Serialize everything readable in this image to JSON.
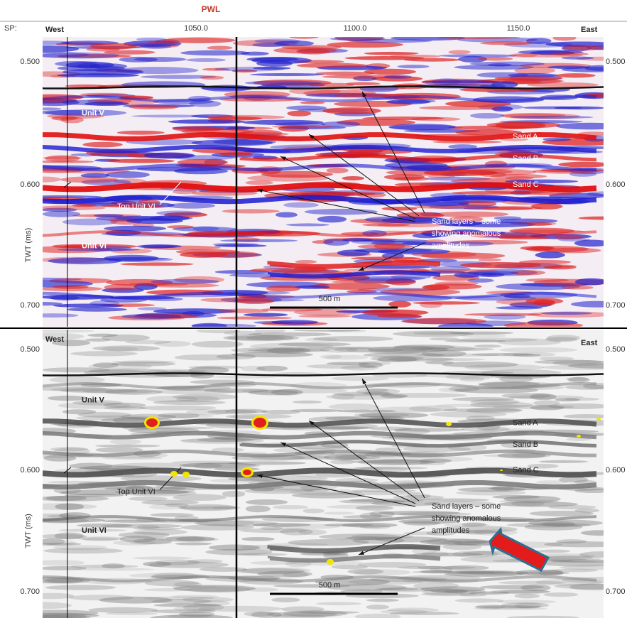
{
  "header": {
    "title": "PWL",
    "sp_label": "SP:",
    "sp_ticks": [
      "1050.0",
      "1100.0",
      "1150.0"
    ]
  },
  "panels": [
    {
      "west": "West",
      "east": "East",
      "y_axis_label": "TWT (ms)",
      "y_ticks": [
        "0.500",
        "0.600",
        "0.700"
      ],
      "unit_upper": "Unit V",
      "top_unit": "Top Unit VI",
      "unit_lower": "Unit VI",
      "sands": [
        "Sand A",
        "Sand B",
        "Sand C"
      ],
      "callout": [
        "Sand layers – some",
        "showing anomalous",
        "amplitudes"
      ],
      "scale_bar": "500 m"
    },
    {
      "west": "West",
      "east": "East",
      "y_axis_label": "TWT (ms)",
      "y_ticks": [
        "0.500",
        "0.600",
        "0.700"
      ],
      "unit_upper": "Unit V",
      "top_unit": "Top Unit VI",
      "unit_lower": "Unit VI",
      "sands": [
        "Sand A",
        "Sand B",
        "Sand C"
      ],
      "callout": [
        "Sand layers – some",
        "showing anomalous",
        "amplitudes"
      ],
      "scale_bar": "500 m"
    }
  ]
}
